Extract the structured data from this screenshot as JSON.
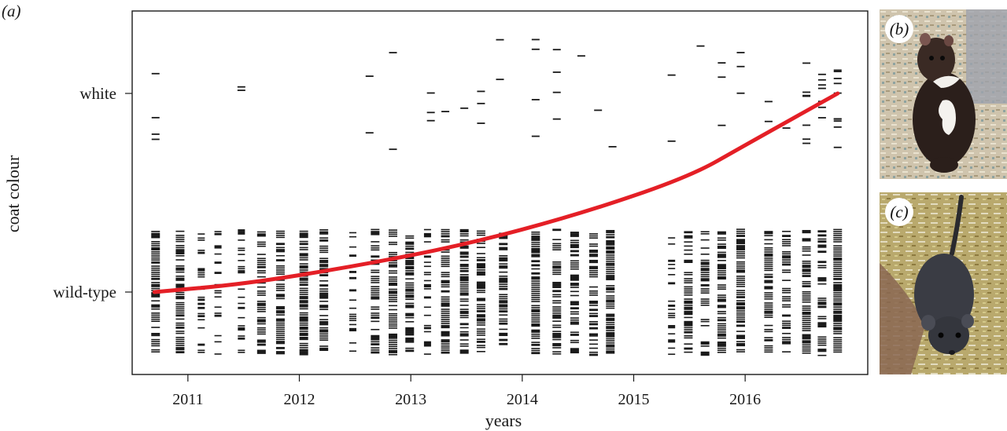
{
  "panels": {
    "a": "(a)",
    "b": "(b)",
    "c": "(c)"
  },
  "colors": {
    "trend_line": "#e41f26",
    "marks": "#1a1a1a"
  },
  "chart_data": {
    "type": "rug",
    "xlabel": "years",
    "ylabel": "coat colour",
    "x_ticks": [
      "2011",
      "2012",
      "2013",
      "2014",
      "2015",
      "2016"
    ],
    "xlim": [
      2010.5,
      2017.1
    ],
    "y_categories": [
      "wild-type",
      "white"
    ],
    "trend": {
      "description": "fitted probability curve from wild-type to white",
      "x": [
        2010.7,
        2011.5,
        2012.5,
        2013.5,
        2014.5,
        2015.5,
        2016.0,
        2016.83
      ],
      "y_fraction": [
        0.0,
        0.04,
        0.13,
        0.24,
        0.39,
        0.58,
        0.74,
        1.0
      ]
    },
    "sampling_dates": [
      2010.71,
      2010.93,
      2011.12,
      2011.27,
      2011.48,
      2011.66,
      2011.83,
      2012.04,
      2012.22,
      2012.48,
      2012.68,
      2012.84,
      2012.99,
      2013.15,
      2013.31,
      2013.48,
      2013.63,
      2013.83,
      2014.12,
      2014.31,
      2014.47,
      2014.64,
      2014.79,
      2015.34,
      2015.49,
      2015.64,
      2015.79,
      2015.96,
      2016.21,
      2016.37,
      2016.55,
      2016.69,
      2016.83
    ],
    "white_detections_x": [
      2010.71,
      2011.48,
      2012.63,
      2012.84,
      2013.18,
      2013.31,
      2013.48,
      2013.63,
      2013.8,
      2014.12,
      2014.31,
      2014.53,
      2014.68,
      2014.81,
      2015.34,
      2015.6,
      2015.79,
      2015.96,
      2016.21,
      2016.37,
      2016.55,
      2016.69,
      2016.83
    ]
  }
}
